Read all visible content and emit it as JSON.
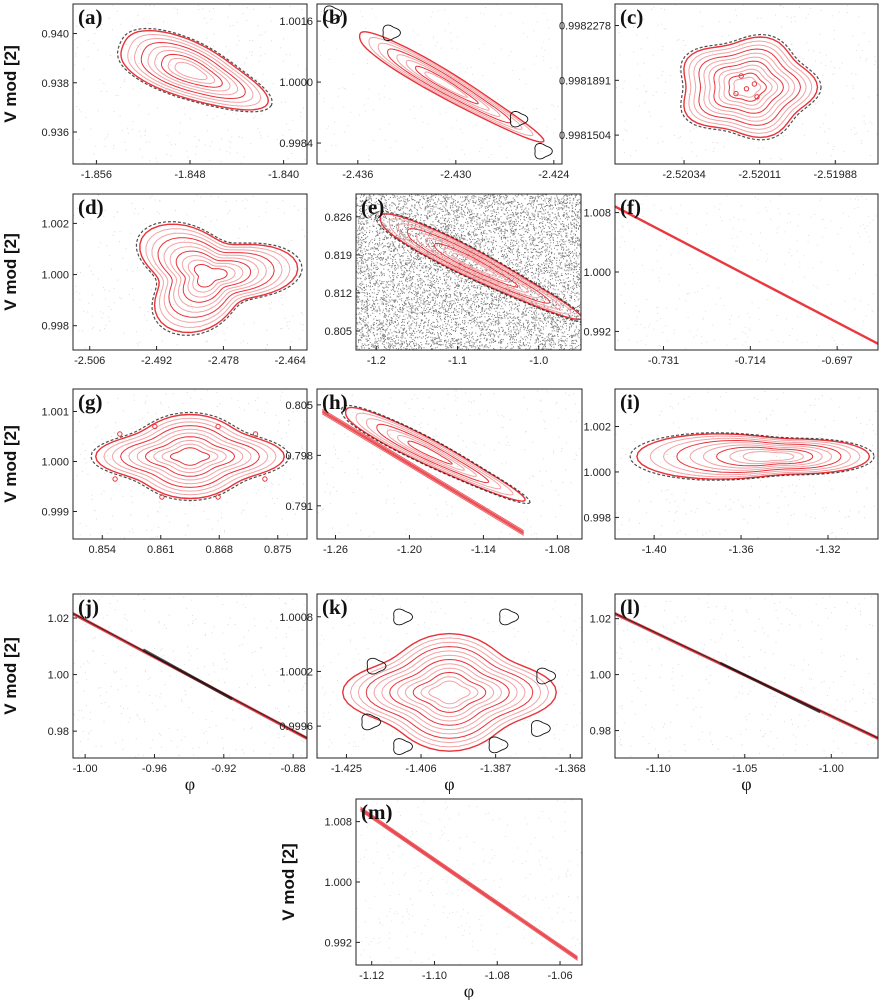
{
  "chart_data": [
    {
      "id": "a",
      "label": "(a)",
      "type": "scatter",
      "ylabel": "V mod [2]",
      "xlabel": "",
      "xticks": [
        "-1.856",
        "-1.848",
        "-1.840"
      ],
      "yticks": [
        "0.940",
        "0.938",
        "0.936"
      ],
      "xrange": [
        -1.858,
        -1.838
      ],
      "yrange": [
        0.9347,
        0.9412
      ]
    },
    {
      "id": "b",
      "label": "(b)",
      "type": "scatter",
      "ylabel": "",
      "xlabel": "",
      "xticks": [
        "-2.436",
        "-2.430",
        "-2.424"
      ],
      "yticks": [
        "1.0016",
        "1.0000",
        "0.9984"
      ],
      "xrange": [
        -2.4385,
        -2.4235
      ],
      "yrange": [
        0.99785,
        1.00205
      ]
    },
    {
      "id": "c",
      "label": "(c)",
      "type": "scatter",
      "ylabel": "",
      "xlabel": "",
      "xticks": [
        "-2.52034",
        "-2.52011",
        "-2.51988"
      ],
      "yticks": [
        "0.9982278",
        "0.9981891",
        "0.9981504"
      ],
      "xrange": [
        -2.52055,
        -2.51975
      ],
      "yrange": [
        0.99813,
        0.998243
      ]
    },
    {
      "id": "d",
      "label": "(d)",
      "type": "scatter",
      "ylabel": "V mod [2]",
      "xlabel": "",
      "xticks": [
        "-2.506",
        "-2.492",
        "-2.478",
        "-2.464"
      ],
      "yticks": [
        "1.002",
        "1.000",
        "0.998"
      ],
      "xrange": [
        -2.5095,
        -2.4605
      ],
      "yrange": [
        0.99705,
        1.00315
      ]
    },
    {
      "id": "e",
      "label": "(e)",
      "type": "scatter",
      "ylabel": "",
      "xlabel": "",
      "xticks": [
        "-1.2",
        "-1.1",
        "-1.0"
      ],
      "yticks": [
        "0.826",
        "0.819",
        "0.812",
        "0.805"
      ],
      "xrange": [
        -1.225,
        -0.948
      ],
      "yrange": [
        0.8015,
        0.8302
      ]
    },
    {
      "id": "f",
      "label": "(f)",
      "type": "scatter",
      "ylabel": "",
      "xlabel": "",
      "xticks": [
        "-0.731",
        "-0.714",
        "-0.697"
      ],
      "yticks": [
        "1.008",
        "1.000",
        "0.992"
      ],
      "xrange": [
        -0.7405,
        -0.689
      ],
      "yrange": [
        0.9895,
        1.0105
      ]
    },
    {
      "id": "g",
      "label": "(g)",
      "type": "scatter",
      "ylabel": "V mod [2]",
      "xlabel": "",
      "xticks": [
        "0.854",
        "0.861",
        "0.868",
        "0.875"
      ],
      "yticks": [
        "1.001",
        "1.000",
        "0.999"
      ],
      "xrange": [
        0.8505,
        0.8785
      ],
      "yrange": [
        0.99845,
        1.00145
      ]
    },
    {
      "id": "h",
      "label": "(h)",
      "type": "scatter",
      "ylabel": "",
      "xlabel": "",
      "xticks": [
        "-1.26",
        "-1.20",
        "-1.14",
        "-1.08"
      ],
      "yticks": [
        "0.805",
        "0.798",
        "0.791"
      ],
      "xrange": [
        -1.275,
        -1.06
      ],
      "yrange": [
        0.7864,
        0.8072
      ]
    },
    {
      "id": "i",
      "label": "(i)",
      "type": "scatter",
      "ylabel": "",
      "xlabel": "",
      "xticks": [
        "-1.40",
        "-1.36",
        "-1.32"
      ],
      "yticks": [
        "1.002",
        "1.000",
        "0.998"
      ],
      "xrange": [
        -1.418,
        -1.297
      ],
      "yrange": [
        0.99705,
        1.00365
      ]
    },
    {
      "id": "j",
      "label": "(j)",
      "type": "scatter",
      "ylabel": "V mod [2]",
      "xlabel": "φ",
      "xticks": [
        "-1.00",
        "-0.96",
        "-0.92",
        "-0.88"
      ],
      "yticks": [
        "1.02",
        "1.00",
        "0.98"
      ],
      "xrange": [
        -1.007,
        -0.872
      ],
      "yrange": [
        0.9705,
        1.0285
      ]
    },
    {
      "id": "k",
      "label": "(k)",
      "type": "scatter",
      "ylabel": "",
      "xlabel": "φ",
      "xticks": [
        "-1.425",
        "-1.406",
        "-1.387",
        "-1.368"
      ],
      "yticks": [
        "1.0008",
        "1.0002",
        "0.9996"
      ],
      "xrange": [
        -1.4325,
        -1.365
      ],
      "yrange": [
        0.99925,
        1.00105
      ]
    },
    {
      "id": "l",
      "label": "(l)",
      "type": "scatter",
      "ylabel": "",
      "xlabel": "φ",
      "xticks": [
        "-1.10",
        "-1.05",
        "-1.00"
      ],
      "yticks": [
        "1.02",
        "1.00",
        "0.98"
      ],
      "xrange": [
        -1.125,
        -0.973
      ],
      "yrange": [
        0.9702,
        1.0288
      ]
    },
    {
      "id": "m",
      "label": "(m)",
      "type": "scatter",
      "ylabel": "V mod [2]",
      "xlabel": "φ",
      "xticks": [
        "-1.12",
        "-1.10",
        "-1.08",
        "-1.06"
      ],
      "yticks": [
        "1.008",
        "1.000",
        "0.992"
      ],
      "xrange": [
        -1.125,
        -1.053
      ],
      "yrange": [
        0.989,
        1.011
      ]
    }
  ],
  "colors": {
    "curve": "#e8333a",
    "curve_light": "#f3a3a6",
    "chaos": "#111111",
    "background_noise": "#9a9a9a"
  }
}
